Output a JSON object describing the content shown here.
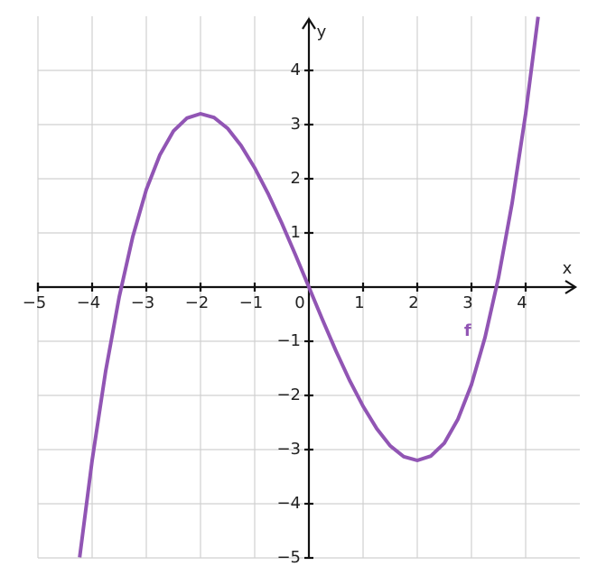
{
  "chart_data": {
    "type": "line",
    "x": [
      -4.23,
      -4,
      -3.75,
      -3.5,
      -3.25,
      -3,
      -2.75,
      -2.5,
      -2.25,
      -2,
      -1.75,
      -1.5,
      -1.25,
      -1,
      -0.75,
      -0.5,
      -0.25,
      0,
      0.25,
      0.5,
      0.75,
      1,
      1.25,
      1.5,
      1.75,
      2,
      2.25,
      2.5,
      2.75,
      3,
      3.25,
      3.5,
      3.75,
      4,
      4.23
    ],
    "series": [
      {
        "name": "f",
        "color": "#9155b4",
        "values": [
          -4.99,
          -3.2,
          -1.55,
          -0.18,
          0.93,
          1.8,
          2.44,
          2.88,
          3.12,
          3.2,
          3.13,
          2.93,
          2.61,
          2.2,
          1.72,
          1.18,
          0.6,
          0,
          -0.6,
          -1.18,
          -1.72,
          -2.2,
          -2.61,
          -2.93,
          -3.13,
          -3.2,
          -3.12,
          -2.88,
          -2.44,
          -1.8,
          -0.93,
          0.18,
          1.55,
          3.2,
          4.99
        ]
      }
    ],
    "x_label": "x",
    "y_label": "y",
    "xlim": [
      -5,
      5
    ],
    "ylim": [
      -5,
      5
    ],
    "xticks": [
      {
        "value": -5,
        "label": "−5"
      },
      {
        "value": -4,
        "label": "−4"
      },
      {
        "value": -3,
        "label": "−3"
      },
      {
        "value": -2,
        "label": "−2"
      },
      {
        "value": -1,
        "label": "−1"
      },
      0,
      1,
      2,
      3,
      4
    ],
    "yticks": [
      {
        "value": -5,
        "label": "−5"
      },
      {
        "value": -4,
        "label": "−4"
      },
      {
        "value": -3,
        "label": "−3"
      },
      {
        "value": -2,
        "label": "−2"
      },
      {
        "value": -1,
        "label": "−1"
      },
      1,
      2,
      3,
      4
    ],
    "grid": true
  }
}
